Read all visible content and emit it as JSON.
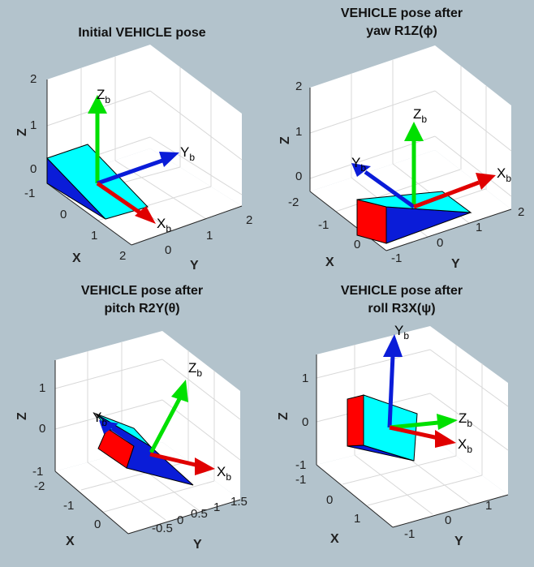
{
  "panels": [
    {
      "title_line1": "Initial VEHICLE pose",
      "title_line2": "",
      "x_axis_label": "X",
      "y_axis_label": "Y",
      "z_axis_label": "Z",
      "x_ticks": [
        "-1",
        "0",
        "1",
        "2"
      ],
      "y_ticks": [
        "0",
        "1",
        "2"
      ],
      "z_ticks": [
        "2",
        "1",
        "0"
      ],
      "vectors": [
        {
          "name": "Z",
          "sub": "b",
          "color": "#00e000"
        },
        {
          "name": "Y",
          "sub": "b",
          "color": "#0a1cd8"
        },
        {
          "name": "X",
          "sub": "b",
          "color": "#e00000"
        }
      ]
    },
    {
      "title_line1": "VEHICLE pose after",
      "title_line2": "yaw R1Z(ϕ)",
      "x_axis_label": "X",
      "y_axis_label": "Y",
      "z_axis_label": "Z",
      "x_ticks": [
        "-2",
        "-1",
        "0"
      ],
      "y_ticks": [
        "-1",
        "0",
        "1",
        "2"
      ],
      "z_ticks": [
        "2",
        "1",
        "0"
      ],
      "vectors": [
        {
          "name": "Z",
          "sub": "b",
          "color": "#00e000"
        },
        {
          "name": "Y",
          "sub": "b",
          "color": "#0a1cd8"
        },
        {
          "name": "X",
          "sub": "b",
          "color": "#e00000"
        }
      ]
    },
    {
      "title_line1": "VEHICLE pose after",
      "title_line2": "pitch R2Y(θ)",
      "x_axis_label": "X",
      "y_axis_label": "Y",
      "z_axis_label": "Z",
      "x_ticks": [
        "-2",
        "-1",
        "0"
      ],
      "y_ticks": [
        "-0.5",
        "0",
        "0.5",
        "1",
        "1.5"
      ],
      "z_ticks": [
        "1",
        "0",
        "-1"
      ],
      "vectors": [
        {
          "name": "Z",
          "sub": "b",
          "color": "#00e000"
        },
        {
          "name": "Y",
          "sub": "b",
          "color": "#0a1cd8"
        },
        {
          "name": "X",
          "sub": "b",
          "color": "#e00000"
        }
      ]
    },
    {
      "title_line1": "VEHICLE pose after",
      "title_line2": "roll R3X(ψ)",
      "x_axis_label": "X",
      "y_axis_label": "Y",
      "z_axis_label": "Z",
      "x_ticks": [
        "-1",
        "0",
        "1"
      ],
      "y_ticks": [
        "-1",
        "0",
        "1"
      ],
      "z_ticks": [
        "1",
        "0",
        "-1"
      ],
      "vectors": [
        {
          "name": "Y",
          "sub": "b",
          "color": "#0a1cd8"
        },
        {
          "name": "Z",
          "sub": "b",
          "color": "#00e000"
        },
        {
          "name": "X",
          "sub": "b",
          "color": "#e00000"
        }
      ]
    }
  ],
  "colors": {
    "background": "#b3c3cc",
    "plot_face": "#ffffff",
    "grid": "#d8d8d8",
    "box_cyan": "#00ffff",
    "box_blue": "#0a1cd8",
    "box_red": "#ff0000"
  }
}
